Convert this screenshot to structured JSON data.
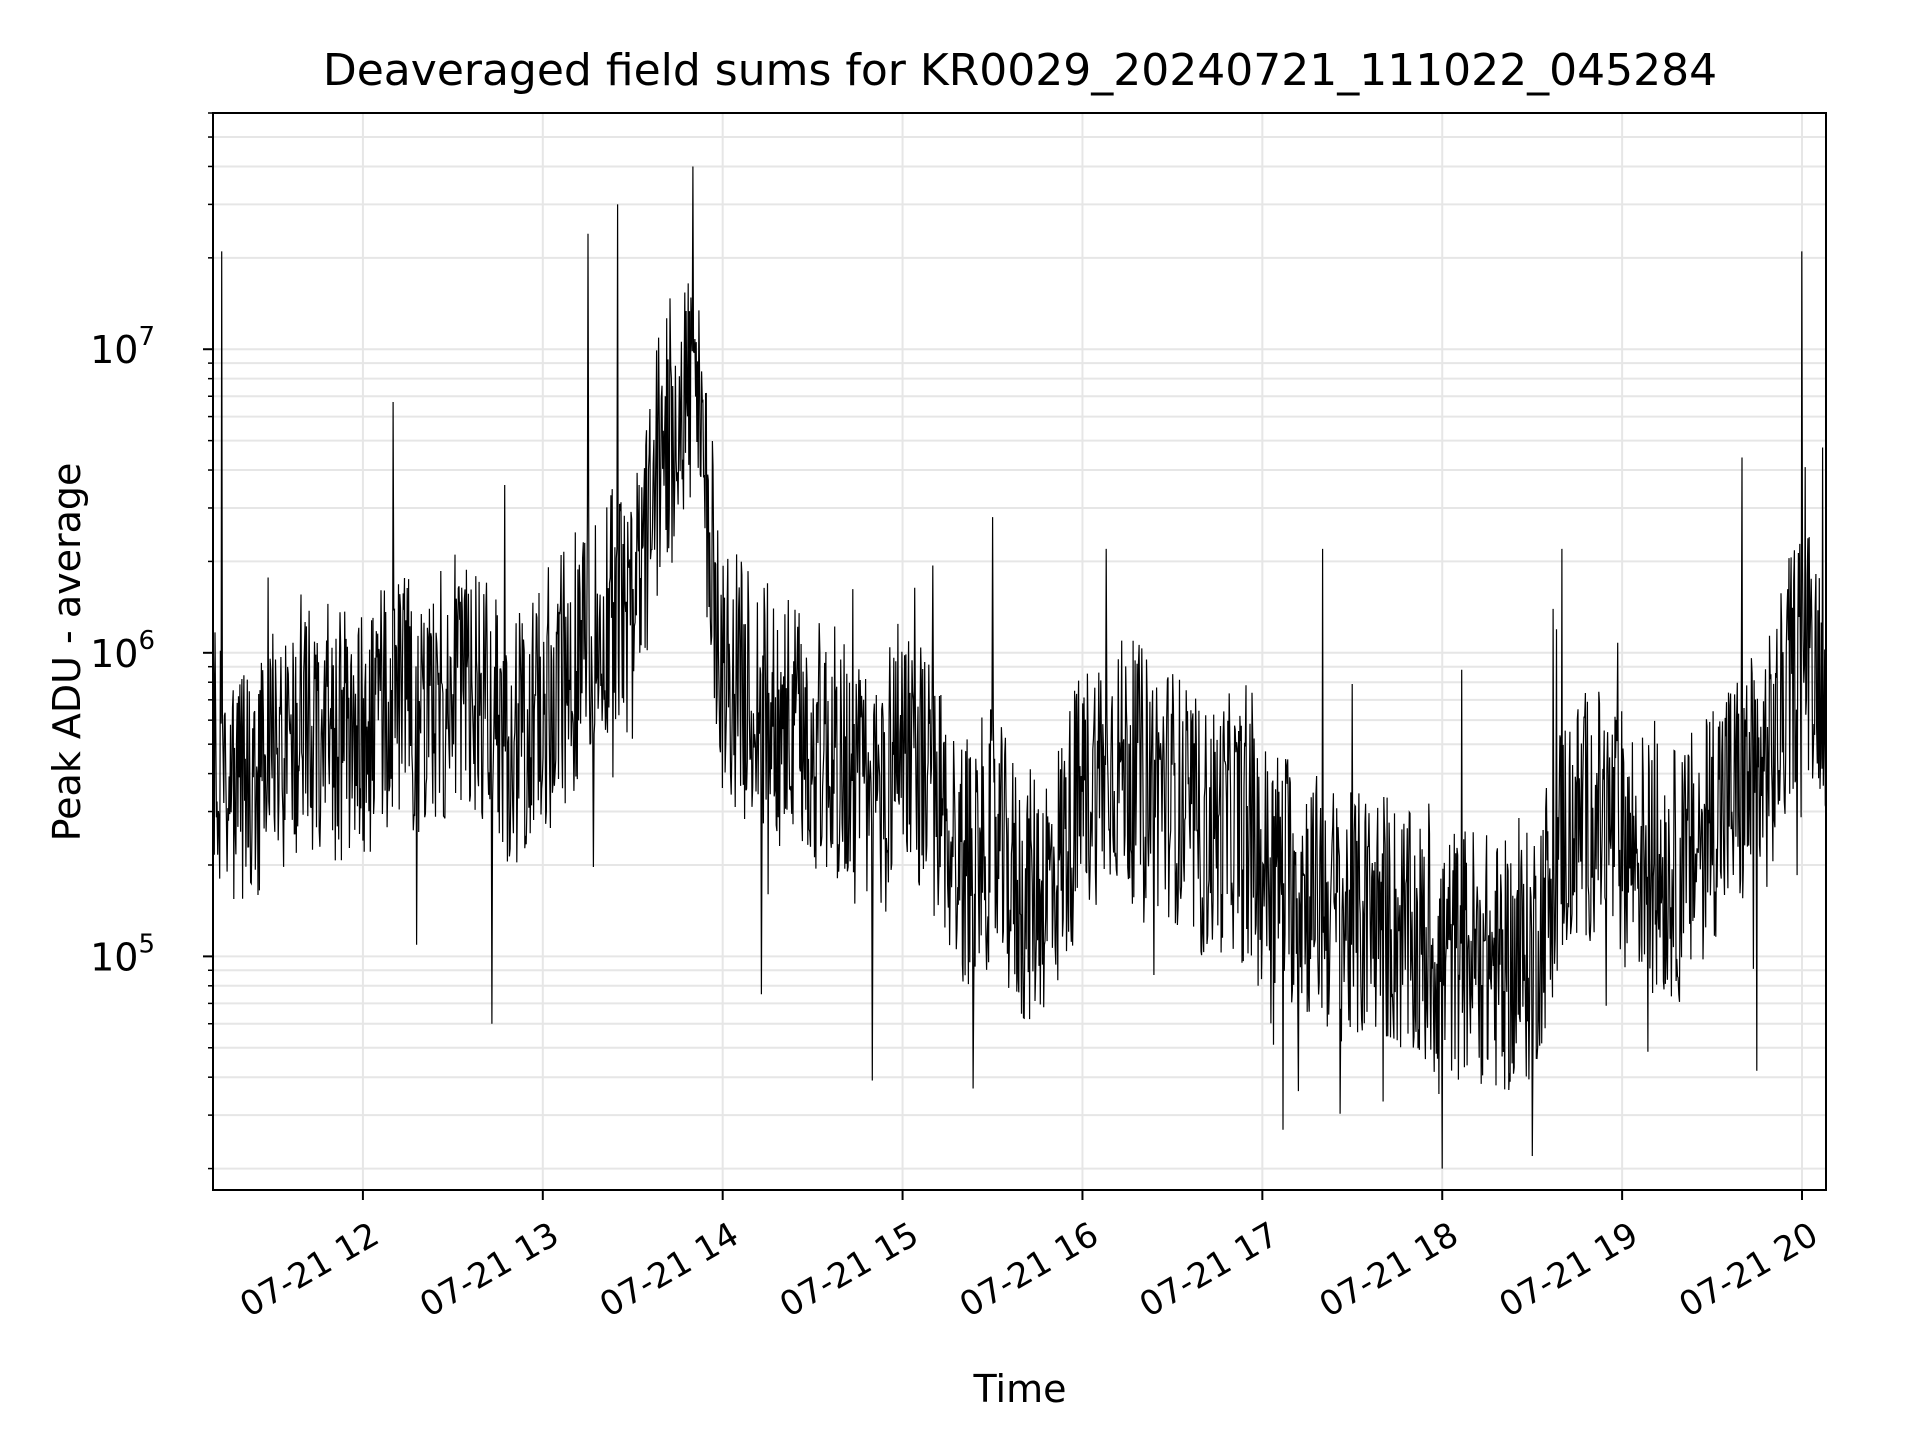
{
  "chart_data": {
    "type": "line",
    "title": "Deaveraged field sums for KR0029_20240721_111022_045284",
    "xlabel": "Time",
    "ylabel": "Peak ADU - average",
    "x_tick_labels": [
      "07-21 12",
      "07-21 13",
      "07-21 14",
      "07-21 15",
      "07-21 16",
      "07-21 17",
      "07-21 18",
      "07-21 19",
      "07-21 20"
    ],
    "x_ticks": [
      "2024-07-21T12:00",
      "2024-07-21T13:00",
      "2024-07-21T14:00",
      "2024-07-21T15:00",
      "2024-07-21T16:00",
      "2024-07-21T17:00",
      "2024-07-21T18:00",
      "2024-07-21T19:00",
      "2024-07-21T20:00"
    ],
    "xlim": [
      "2024-07-21T11:10",
      "2024-07-21T20:08"
    ],
    "y_scale": "log",
    "ylim": [
      17000,
      60000000
    ],
    "y_ticks": [
      {
        "base": "10",
        "exp": "5",
        "value": 100000
      },
      {
        "base": "10",
        "exp": "6",
        "value": 1000000
      },
      {
        "base": "10",
        "exp": "7",
        "value": 10000000
      }
    ],
    "grid": true,
    "line_color": "#000000",
    "grid_color": "#e6e6e6",
    "series": [
      {
        "x": [
          "11:10",
          "11:20",
          "11:30",
          "11:40",
          "11:50",
          "12:00",
          "12:10",
          "12:20",
          "12:30",
          "12:40",
          "12:50",
          "13:00",
          "13:10",
          "13:20",
          "13:30",
          "13:40",
          "13:50",
          "14:00",
          "14:10",
          "14:20",
          "14:30",
          "14:40",
          "14:50",
          "15:00",
          "15:10",
          "15:20",
          "15:30",
          "15:40",
          "15:50",
          "16:00",
          "16:10",
          "16:20",
          "16:30",
          "16:40",
          "16:50",
          "17:00",
          "17:10",
          "17:20",
          "17:30",
          "17:40",
          "17:50",
          "18:00",
          "18:10",
          "18:20",
          "18:30",
          "18:40",
          "18:50",
          "19:00",
          "19:10",
          "19:20",
          "19:30",
          "19:40",
          "19:50",
          "20:00",
          "20:08"
        ],
        "y": [
          500000,
          350000,
          450000,
          600000,
          550000,
          500000,
          700000,
          650000,
          800000,
          700000,
          500000,
          700000,
          900000,
          1500000,
          1200000,
          5000000,
          8000000,
          900000,
          700000,
          600000,
          500000,
          450000,
          300000,
          600000,
          350000,
          200000,
          250000,
          150000,
          180000,
          350000,
          450000,
          400000,
          350000,
          250000,
          280000,
          200000,
          180000,
          150000,
          130000,
          140000,
          110000,
          100000,
          105000,
          90000,
          100000,
          250000,
          300000,
          250000,
          200000,
          180000,
          300000,
          350000,
          450000,
          1200000,
          800000
        ]
      }
    ],
    "spikes": [
      {
        "x": "11:13",
        "y": 21000000
      },
      {
        "x": "12:10",
        "y": 6700000
      },
      {
        "x": "12:43",
        "y": 60000
      },
      {
        "x": "13:15",
        "y": 24000000
      },
      {
        "x": "13:25",
        "y": 30000000
      },
      {
        "x": "13:50",
        "y": 40000000
      },
      {
        "x": "14:13",
        "y": 75000
      },
      {
        "x": "14:50",
        "y": 39000
      },
      {
        "x": "15:30",
        "y": 2800000
      },
      {
        "x": "16:08",
        "y": 2200000
      },
      {
        "x": "17:12",
        "y": 36000
      },
      {
        "x": "17:20",
        "y": 2200000
      },
      {
        "x": "18:00",
        "y": 20000
      },
      {
        "x": "18:30",
        "y": 22000
      },
      {
        "x": "18:40",
        "y": 2200000
      },
      {
        "x": "19:40",
        "y": 4400000
      },
      {
        "x": "19:45",
        "y": 42000
      },
      {
        "x": "20:00",
        "y": 21000000
      }
    ]
  }
}
